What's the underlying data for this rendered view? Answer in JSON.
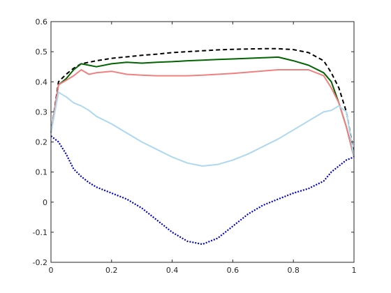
{
  "chart_data": {
    "type": "line",
    "title": "",
    "xlabel": "",
    "ylabel": "",
    "xlim": [
      0,
      1
    ],
    "ylim": [
      -0.2,
      0.6
    ],
    "grid": false,
    "legend": "none",
    "xticks": [
      0,
      0.2,
      0.4,
      0.6,
      0.8,
      1
    ],
    "xtick_labels": [
      "0",
      "0.2",
      "0.4",
      "0.6",
      "0.8",
      "1"
    ],
    "yticks": [
      -0.2,
      -0.1,
      0,
      0.1,
      0.2,
      0.3,
      0.4,
      0.5,
      0.6
    ],
    "ytick_labels": [
      "-0.2",
      "-0.1",
      "0",
      "0.1",
      "0.2",
      "0.3",
      "0.4",
      "0.5",
      "0.6"
    ],
    "series": [
      {
        "color": "#000000",
        "style": "dashed",
        "x": [
          0,
          0.025,
          0.05,
          0.075,
          0.1,
          0.15,
          0.2,
          0.25,
          0.3,
          0.35,
          0.4,
          0.45,
          0.5,
          0.55,
          0.6,
          0.65,
          0.7,
          0.75,
          0.8,
          0.85,
          0.9,
          0.925,
          0.95,
          0.975,
          1
        ],
        "y": [
          0.23,
          0.4,
          0.425,
          0.445,
          0.46,
          0.47,
          0.478,
          0.483,
          0.488,
          0.492,
          0.497,
          0.5,
          0.503,
          0.506,
          0.508,
          0.509,
          0.51,
          0.51,
          0.507,
          0.497,
          0.47,
          0.43,
          0.38,
          0.3,
          0.16
        ]
      },
      {
        "color": "#006400",
        "style": "solid",
        "x": [
          0,
          0.025,
          0.05,
          0.075,
          0.1,
          0.125,
          0.15,
          0.2,
          0.25,
          0.3,
          0.35,
          0.4,
          0.45,
          0.5,
          0.55,
          0.6,
          0.65,
          0.7,
          0.75,
          0.8,
          0.85,
          0.9,
          0.925,
          0.95,
          0.975,
          1
        ],
        "y": [
          0.23,
          0.39,
          0.41,
          0.44,
          0.46,
          0.455,
          0.45,
          0.46,
          0.465,
          0.462,
          0.465,
          0.467,
          0.47,
          0.472,
          0.474,
          0.476,
          0.478,
          0.48,
          0.482,
          0.47,
          0.455,
          0.43,
          0.4,
          0.33,
          0.25,
          0.15
        ]
      },
      {
        "color": "#f08080",
        "style": "solid",
        "x": [
          0,
          0.025,
          0.05,
          0.075,
          0.1,
          0.125,
          0.15,
          0.2,
          0.25,
          0.3,
          0.35,
          0.4,
          0.45,
          0.5,
          0.55,
          0.6,
          0.65,
          0.7,
          0.75,
          0.8,
          0.85,
          0.9,
          0.925,
          0.95,
          0.975,
          1
        ],
        "y": [
          0.23,
          0.39,
          0.405,
          0.42,
          0.44,
          0.425,
          0.43,
          0.435,
          0.425,
          0.422,
          0.42,
          0.42,
          0.42,
          0.422,
          0.425,
          0.428,
          0.432,
          0.436,
          0.44,
          0.44,
          0.44,
          0.42,
          0.38,
          0.33,
          0.25,
          0.15
        ]
      },
      {
        "color": "#add8f0",
        "style": "solid",
        "x": [
          0,
          0.025,
          0.05,
          0.075,
          0.1,
          0.125,
          0.15,
          0.2,
          0.25,
          0.3,
          0.35,
          0.4,
          0.45,
          0.5,
          0.55,
          0.6,
          0.65,
          0.7,
          0.75,
          0.8,
          0.85,
          0.9,
          0.925,
          0.95,
          0.975,
          1
        ],
        "y": [
          0.23,
          0.365,
          0.35,
          0.33,
          0.32,
          0.305,
          0.285,
          0.26,
          0.23,
          0.2,
          0.175,
          0.15,
          0.13,
          0.12,
          0.125,
          0.14,
          0.16,
          0.185,
          0.21,
          0.24,
          0.27,
          0.3,
          0.305,
          0.32,
          0.3,
          0.15
        ]
      },
      {
        "color": "#0000cd",
        "style": "dotted",
        "x": [
          0,
          0.025,
          0.05,
          0.075,
          0.1,
          0.125,
          0.15,
          0.2,
          0.25,
          0.3,
          0.35,
          0.4,
          0.45,
          0.5,
          0.55,
          0.6,
          0.65,
          0.7,
          0.75,
          0.8,
          0.85,
          0.9,
          0.925,
          0.95,
          0.975,
          1
        ],
        "y": [
          0.22,
          0.2,
          0.16,
          0.11,
          0.085,
          0.065,
          0.05,
          0.03,
          0.01,
          -0.02,
          -0.06,
          -0.1,
          -0.13,
          -0.14,
          -0.12,
          -0.08,
          -0.04,
          -0.01,
          0.01,
          0.03,
          0.045,
          0.07,
          0.1,
          0.12,
          0.14,
          0.15
        ]
      }
    ]
  }
}
